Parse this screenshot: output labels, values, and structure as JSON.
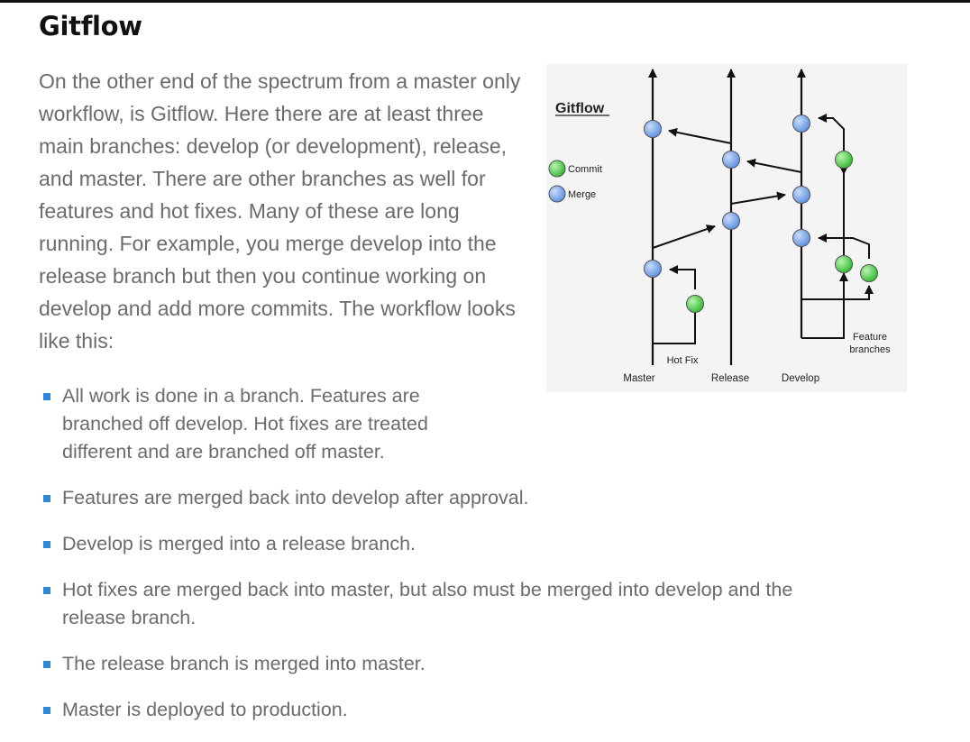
{
  "heading": "Gitflow",
  "intro": "On the other end of the spectrum from a master only workflow, is Gitflow. Here there are at least three main branches: develop (or development), release, and master. There are other branches as well for features and hot fixes. Many of these are long running. For example, you merge develop into the release branch but then you continue working on develop and add more commits. The workflow looks like this:",
  "diagram": {
    "title": "Gitflow",
    "legend": {
      "commit": "Commit",
      "merge": "Merge"
    },
    "labels": {
      "master": "Master",
      "release": "Release",
      "develop": "Develop",
      "hotfix": "Hot Fix",
      "feature_line1": "Feature",
      "feature_line2": "branches"
    },
    "colors": {
      "commit": "#3ec43e",
      "merge": "#6f9fe6",
      "background": "#f4f4f4"
    }
  },
  "bullets": [
    "All work is done in a branch. Features are branched off develop. Hot fixes are treated different and are branched off master.",
    "Features are merged back into develop after approval.",
    "Develop is merged into a release branch.",
    "Hot fixes are merged back into master, but also must be merged into develop and the release branch.",
    "The release branch is merged into master.",
    "Master is deployed to production."
  ],
  "colors": {
    "bullet": "#2e8ad8",
    "text": "#6b6b6b",
    "heading": "#111111"
  }
}
